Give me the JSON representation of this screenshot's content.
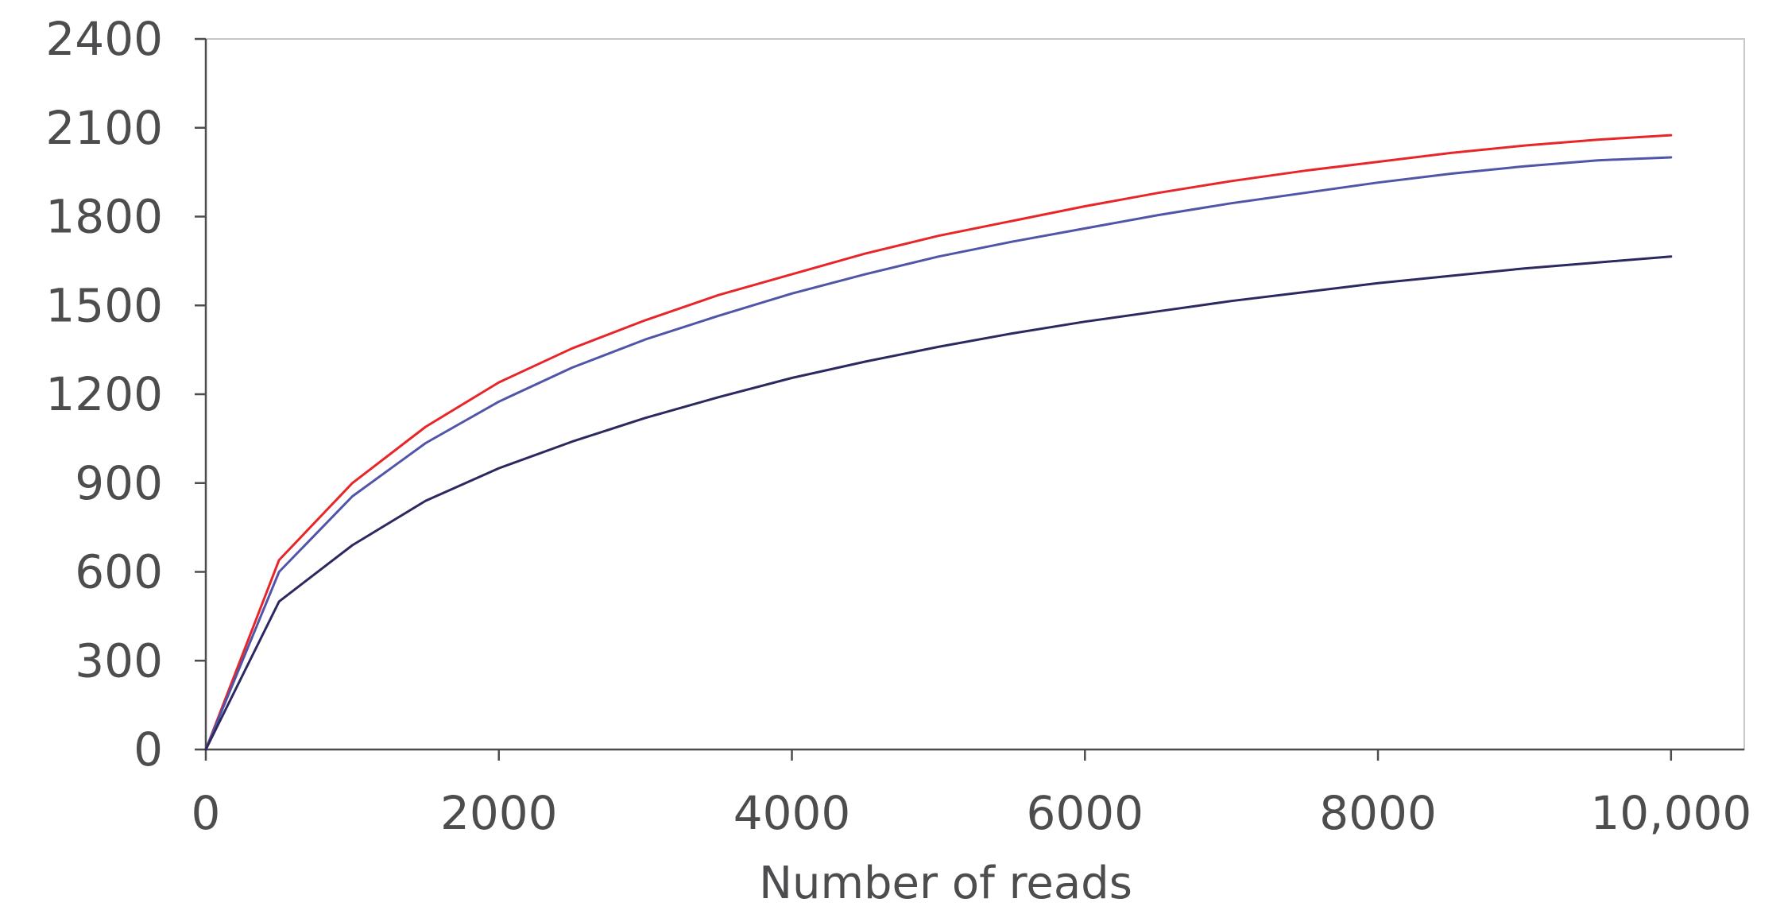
{
  "chart_data": {
    "type": "line",
    "title": "",
    "xlabel": "Number of reads",
    "ylabel": "",
    "xlim": [
      0,
      10500
    ],
    "ylim": [
      0,
      2400
    ],
    "x_ticks": [
      0,
      2000,
      4000,
      6000,
      8000,
      10000
    ],
    "x_tick_labels": [
      "0",
      "2000",
      "4000",
      "6000",
      "8000",
      "10,000"
    ],
    "y_ticks": [
      0,
      300,
      600,
      900,
      1200,
      1500,
      1800,
      2100,
      2400
    ],
    "y_tick_labels": [
      "0",
      "300",
      "600",
      "900",
      "1200",
      "1500",
      "1800",
      "2100",
      "2400"
    ],
    "grid": false,
    "frame": "box",
    "x": [
      0,
      500,
      1000,
      1500,
      2000,
      2500,
      3000,
      3500,
      4000,
      4500,
      5000,
      5500,
      6000,
      6500,
      7000,
      7500,
      8000,
      8500,
      9000,
      9500,
      10000
    ],
    "series": [
      {
        "color": "#e8262a",
        "values": [
          0,
          640,
          900,
          1090,
          1240,
          1355,
          1450,
          1535,
          1605,
          1675,
          1735,
          1785,
          1835,
          1880,
          1920,
          1955,
          1985,
          2015,
          2040,
          2060,
          2075
        ]
      },
      {
        "color": "#5055a8",
        "values": [
          0,
          600,
          855,
          1035,
          1175,
          1290,
          1385,
          1465,
          1540,
          1605,
          1665,
          1715,
          1760,
          1805,
          1845,
          1880,
          1915,
          1945,
          1970,
          1990,
          2000
        ]
      },
      {
        "color": "#2b2960",
        "values": [
          0,
          500,
          690,
          840,
          950,
          1040,
          1120,
          1190,
          1255,
          1310,
          1360,
          1405,
          1445,
          1480,
          1515,
          1545,
          1575,
          1600,
          1625,
          1645,
          1665
        ]
      }
    ]
  }
}
